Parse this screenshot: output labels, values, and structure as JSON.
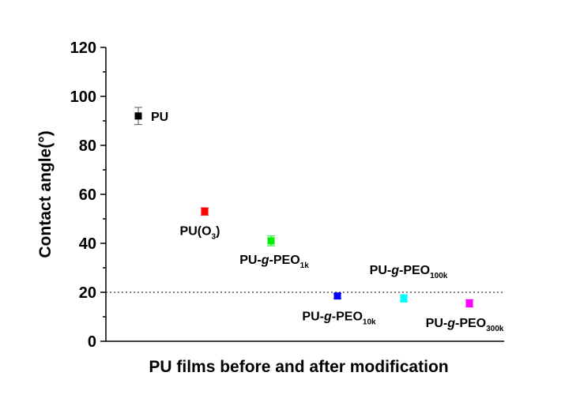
{
  "chart_data": {
    "type": "scatter",
    "title": "",
    "xlabel": "PU films before and after modification",
    "ylabel": "Contact angle(°)",
    "ylim": [
      0,
      120
    ],
    "yticks": [
      "0",
      "20",
      "40",
      "60",
      "80",
      "100",
      "120"
    ],
    "x_tick_labels_shown": false,
    "grid": false,
    "reference_line": {
      "y": 20,
      "style": "dotted",
      "color": "#333333"
    },
    "points": [
      {
        "label": "PU",
        "label_main": "PU",
        "label_italic": "",
        "label_rest": "",
        "label_sub": "",
        "label_after": "",
        "x": 1,
        "y": 92,
        "err": 3.5,
        "color": "#000000"
      },
      {
        "label": "PU(O3)",
        "label_main": "PU(O",
        "label_italic": "",
        "label_rest": "",
        "label_sub": "3",
        "label_after": ")",
        "x": 2,
        "y": 53,
        "err": 1.5,
        "color": "#ff0000"
      },
      {
        "label": "PU-g-PEO1k",
        "label_main": "PU-",
        "label_italic": "g",
        "label_rest": "-PEO",
        "label_sub": "1k",
        "label_after": "",
        "x": 3,
        "y": 41,
        "err": 2,
        "color": "#00ee00"
      },
      {
        "label": "PU-g-PEO10k",
        "label_main": "PU-",
        "label_italic": "g",
        "label_rest": "-PEO",
        "label_sub": "10k",
        "label_after": "",
        "x": 4,
        "y": 18.5,
        "err": 1,
        "color": "#0000ff"
      },
      {
        "label": "PU-g-PEO100k",
        "label_main": "PU-",
        "label_italic": "g",
        "label_rest": "-PEO",
        "label_sub": "100k",
        "label_after": "",
        "x": 5,
        "y": 17.5,
        "err": 1.5,
        "color": "#00ffff"
      },
      {
        "label": "PU-g-PEO300k",
        "label_main": "PU-",
        "label_italic": "g",
        "label_rest": "-PEO",
        "label_sub": "300k",
        "label_after": "",
        "x": 6,
        "y": 15.5,
        "err": 1.5,
        "color": "#ff00ff"
      }
    ]
  }
}
